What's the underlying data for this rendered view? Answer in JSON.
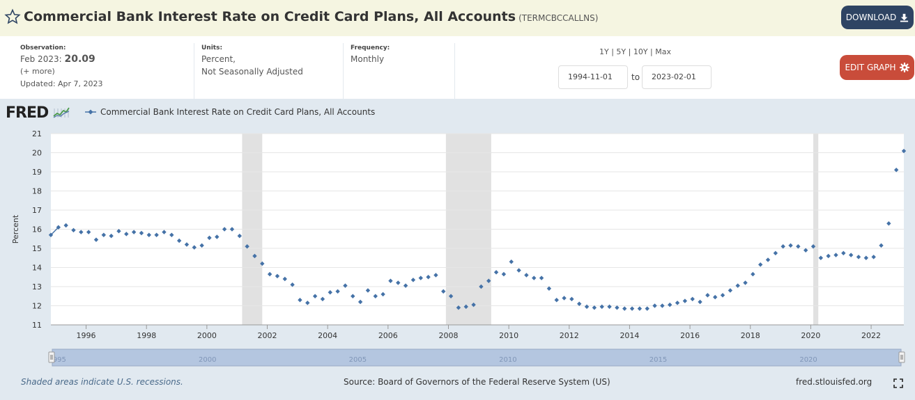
{
  "header": {
    "title": "Commercial Bank Interest Rate on Credit Card Plans, All Accounts",
    "series_code": "(TERMCBCCALLNS)",
    "download_label": "DOWNLOAD"
  },
  "meta": {
    "observation_label": "Observation:",
    "observation_date": "Feb 2023:",
    "observation_value": "20.09",
    "more_label": "(+ more)",
    "updated": "Updated: Apr 7, 2023",
    "units_label": "Units:",
    "units_line1": "Percent,",
    "units_line2": "Not Seasonally Adjusted",
    "frequency_label": "Frequency:",
    "frequency_value": "Monthly"
  },
  "range_controls": {
    "options": [
      "1Y",
      "5Y",
      "10Y",
      "Max"
    ],
    "start_date": "1994-11-01",
    "to_label": "to",
    "end_date": "2023-02-01",
    "edit_label": "EDIT GRAPH"
  },
  "chart_brand": "FRED",
  "footer": {
    "recession_note": "Shaded areas indicate U.S. recessions.",
    "source": "Source: Board of Governors of the Federal Reserve System (US)",
    "site": "fred.stlouisfed.org"
  },
  "colors": {
    "series": "#4572a7",
    "recession": "#e1e1e1",
    "download_button": "#2e4463",
    "edit_button": "#c94c3a",
    "header_bg": "#f5f5e1",
    "chart_bg": "#e1e9f0"
  },
  "chart_data": {
    "type": "scatter",
    "title": "",
    "ylabel": "Percent",
    "xlabel": "",
    "ylim": [
      11,
      21
    ],
    "yticks": [
      11,
      12,
      13,
      14,
      15,
      16,
      17,
      18,
      19,
      20,
      21
    ],
    "xlim": [
      "1994-11-01",
      "2023-02-01"
    ],
    "xtick_labels": [
      "1996",
      "1998",
      "2000",
      "2002",
      "2004",
      "2006",
      "2008",
      "2010",
      "2012",
      "2014",
      "2016",
      "2018",
      "2020",
      "2022"
    ],
    "navigator_labels": [
      "1995",
      "2000",
      "2005",
      "2010",
      "2015",
      "2020"
    ],
    "legend": "Commercial Bank Interest Rate on Credit Card Plans, All Accounts",
    "recessions": [
      [
        "2001-03-01",
        "2001-11-01"
      ],
      [
        "2007-12-01",
        "2009-06-01"
      ],
      [
        "2020-02-01",
        "2020-04-01"
      ]
    ],
    "series": [
      {
        "name": "Commercial Bank Interest Rate on Credit Card Plans, All Accounts",
        "points": [
          [
            "1994-11",
            15.7
          ],
          [
            "1995-02",
            16.1
          ],
          [
            "1995-05",
            16.2
          ],
          [
            "1995-08",
            15.95
          ],
          [
            "1995-11",
            15.85
          ],
          [
            "1996-02",
            15.85
          ],
          [
            "1996-05",
            15.45
          ],
          [
            "1996-08",
            15.7
          ],
          [
            "1996-11",
            15.65
          ],
          [
            "1997-02",
            15.9
          ],
          [
            "1997-05",
            15.75
          ],
          [
            "1997-08",
            15.85
          ],
          [
            "1997-11",
            15.8
          ],
          [
            "1998-02",
            15.7
          ],
          [
            "1998-05",
            15.7
          ],
          [
            "1998-08",
            15.85
          ],
          [
            "1998-11",
            15.7
          ],
          [
            "1999-02",
            15.4
          ],
          [
            "1999-05",
            15.2
          ],
          [
            "1999-08",
            15.05
          ],
          [
            "1999-11",
            15.15
          ],
          [
            "2000-02",
            15.55
          ],
          [
            "2000-05",
            15.6
          ],
          [
            "2000-08",
            16.0
          ],
          [
            "2000-11",
            16.0
          ],
          [
            "2001-02",
            15.65
          ],
          [
            "2001-05",
            15.1
          ],
          [
            "2001-08",
            14.6
          ],
          [
            "2001-11",
            14.2
          ],
          [
            "2002-02",
            13.65
          ],
          [
            "2002-05",
            13.55
          ],
          [
            "2002-08",
            13.4
          ],
          [
            "2002-11",
            13.1
          ],
          [
            "2003-02",
            12.3
          ],
          [
            "2003-05",
            12.15
          ],
          [
            "2003-08",
            12.5
          ],
          [
            "2003-11",
            12.35
          ],
          [
            "2004-02",
            12.7
          ],
          [
            "2004-05",
            12.75
          ],
          [
            "2004-08",
            13.05
          ],
          [
            "2004-11",
            12.5
          ],
          [
            "2005-02",
            12.2
          ],
          [
            "2005-05",
            12.8
          ],
          [
            "2005-08",
            12.5
          ],
          [
            "2005-11",
            12.6
          ],
          [
            "2006-02",
            13.3
          ],
          [
            "2006-05",
            13.2
          ],
          [
            "2006-08",
            13.05
          ],
          [
            "2006-11",
            13.35
          ],
          [
            "2007-02",
            13.45
          ],
          [
            "2007-05",
            13.5
          ],
          [
            "2007-08",
            13.6
          ],
          [
            "2007-11",
            12.75
          ],
          [
            "2008-02",
            12.5
          ],
          [
            "2008-05",
            11.9
          ],
          [
            "2008-08",
            11.95
          ],
          [
            "2008-11",
            12.05
          ],
          [
            "2009-02",
            13.0
          ],
          [
            "2009-05",
            13.3
          ],
          [
            "2009-08",
            13.75
          ],
          [
            "2009-11",
            13.65
          ],
          [
            "2010-02",
            14.3
          ],
          [
            "2010-05",
            13.85
          ],
          [
            "2010-08",
            13.6
          ],
          [
            "2010-11",
            13.45
          ],
          [
            "2011-02",
            13.45
          ],
          [
            "2011-05",
            12.9
          ],
          [
            "2011-08",
            12.3
          ],
          [
            "2011-11",
            12.4
          ],
          [
            "2012-02",
            12.35
          ],
          [
            "2012-05",
            12.1
          ],
          [
            "2012-08",
            11.95
          ],
          [
            "2012-11",
            11.9
          ],
          [
            "2013-02",
            11.95
          ],
          [
            "2013-05",
            11.95
          ],
          [
            "2013-08",
            11.9
          ],
          [
            "2013-11",
            11.85
          ],
          [
            "2014-02",
            11.85
          ],
          [
            "2014-05",
            11.85
          ],
          [
            "2014-08",
            11.85
          ],
          [
            "2014-11",
            12.0
          ],
          [
            "2015-02",
            12.0
          ],
          [
            "2015-05",
            12.05
          ],
          [
            "2015-08",
            12.15
          ],
          [
            "2015-11",
            12.25
          ],
          [
            "2016-02",
            12.35
          ],
          [
            "2016-05",
            12.2
          ],
          [
            "2016-08",
            12.55
          ],
          [
            "2016-11",
            12.45
          ],
          [
            "2017-02",
            12.55
          ],
          [
            "2017-05",
            12.8
          ],
          [
            "2017-08",
            13.05
          ],
          [
            "2017-11",
            13.2
          ],
          [
            "2018-02",
            13.65
          ],
          [
            "2018-05",
            14.15
          ],
          [
            "2018-08",
            14.4
          ],
          [
            "2018-11",
            14.75
          ],
          [
            "2019-02",
            15.1
          ],
          [
            "2019-05",
            15.15
          ],
          [
            "2019-08",
            15.1
          ],
          [
            "2019-11",
            14.9
          ],
          [
            "2020-02",
            15.1
          ],
          [
            "2020-05",
            14.5
          ],
          [
            "2020-08",
            14.6
          ],
          [
            "2020-11",
            14.65
          ],
          [
            "2021-02",
            14.75
          ],
          [
            "2021-05",
            14.65
          ],
          [
            "2021-08",
            14.55
          ],
          [
            "2021-11",
            14.5
          ],
          [
            "2022-02",
            14.55
          ],
          [
            "2022-05",
            15.15
          ],
          [
            "2022-08",
            16.3
          ],
          [
            "2022-11",
            19.1
          ],
          [
            "2023-02",
            20.09
          ]
        ]
      }
    ]
  }
}
